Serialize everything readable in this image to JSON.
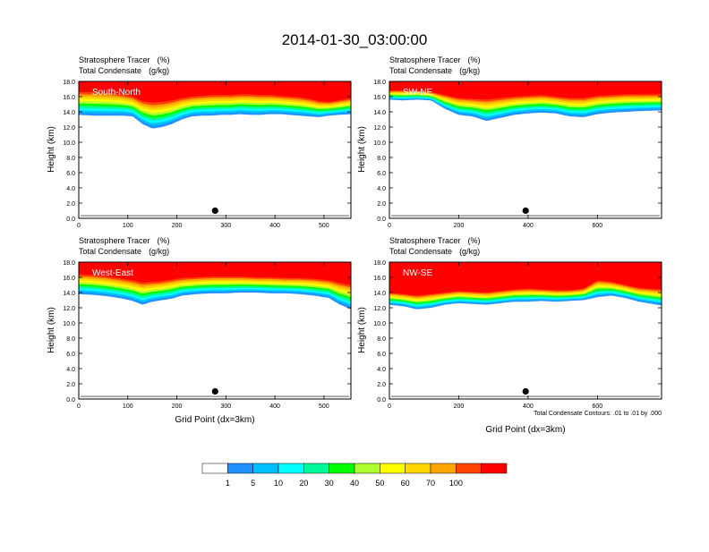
{
  "title": "2014-01-30_03:00:00",
  "panel_header": {
    "line1_name": "Stratosphere Tracer",
    "line1_unit": "(%)",
    "line2_name": "Total Condensate",
    "line2_unit": "(g/kg)"
  },
  "ylabel": "Height (km)",
  "xlabel": "Grid Point (dx=3km)",
  "contour_note": "Total Condensate Contours: .01 to .01 by .000",
  "colorbar": {
    "colors": [
      "#ffffff",
      "#1e90ff",
      "#00bfff",
      "#00ffff",
      "#00fa9a",
      "#00ff00",
      "#adff2f",
      "#ffff00",
      "#ffd700",
      "#ffa500",
      "#ff4500",
      "#ff0000"
    ],
    "labels": [
      "1",
      "5",
      "10",
      "20",
      "30",
      "40",
      "50",
      "60",
      "70",
      "100"
    ]
  },
  "chart_data": [
    {
      "type": "heatmap",
      "section": "South-North",
      "xlim": [
        0,
        555
      ],
      "ylim": [
        0,
        18
      ],
      "xticks": [
        "0",
        "100",
        "200",
        "300",
        "400",
        "500"
      ],
      "xtick_values": [
        0,
        100,
        200,
        300,
        400,
        500
      ],
      "yticks": [
        "0.0",
        "2.0",
        "4.0",
        "6.0",
        "8.0",
        "10.0",
        "12.0",
        "14.0",
        "16.0",
        "18.0"
      ],
      "marker": {
        "x": 278,
        "y": 1.0
      },
      "tracer_x": [
        0,
        30,
        60,
        90,
        110,
        130,
        150,
        170,
        190,
        210,
        230,
        250,
        270,
        290,
        310,
        330,
        350,
        370,
        390,
        410,
        430,
        450,
        470,
        490,
        510,
        530,
        555
      ],
      "tracer_base_km": [
        13.6,
        13.5,
        13.5,
        13.5,
        13.4,
        12.4,
        11.8,
        12.0,
        12.4,
        13.0,
        13.4,
        13.5,
        13.5,
        13.6,
        13.6,
        13.7,
        13.6,
        13.6,
        13.7,
        13.7,
        13.6,
        13.5,
        13.4,
        13.3,
        13.5,
        13.6,
        13.7
      ],
      "red_base_km": [
        16.6,
        16.6,
        16.5,
        16.3,
        16.0,
        15.4,
        15.2,
        15.3,
        15.5,
        15.8,
        16.0,
        16.1,
        16.2,
        16.2,
        16.2,
        16.3,
        16.3,
        16.2,
        16.2,
        16.1,
        16.0,
        15.9,
        15.7,
        15.4,
        15.3,
        15.5,
        15.8
      ]
    },
    {
      "type": "heatmap",
      "section": "SW-NE",
      "xlim": [
        0,
        785
      ],
      "ylim": [
        0,
        18
      ],
      "xticks": [
        "0",
        "200",
        "400",
        "600"
      ],
      "xtick_values": [
        0,
        200,
        400,
        600
      ],
      "yticks": [
        "0.0",
        "2.0",
        "4.0",
        "6.0",
        "8.0",
        "10.0",
        "12.0",
        "14.0",
        "16.0",
        "18.0"
      ],
      "marker": {
        "x": 393,
        "y": 1.0
      },
      "tracer_x": [
        0,
        40,
        80,
        120,
        160,
        200,
        240,
        280,
        320,
        360,
        400,
        440,
        480,
        520,
        560,
        600,
        640,
        680,
        720,
        785
      ],
      "tracer_base_km": [
        15.6,
        15.5,
        15.6,
        15.5,
        14.4,
        13.6,
        13.4,
        12.8,
        13.2,
        13.6,
        13.8,
        13.9,
        13.8,
        13.4,
        13.3,
        13.7,
        13.9,
        14.0,
        14.1,
        14.2
      ],
      "red_base_km": [
        16.8,
        16.8,
        16.8,
        16.6,
        16.2,
        15.8,
        15.7,
        15.6,
        15.8,
        16.0,
        16.1,
        16.2,
        16.0,
        15.8,
        15.8,
        16.1,
        16.2,
        16.3,
        16.3,
        16.3
      ]
    },
    {
      "type": "heatmap",
      "section": "West-East",
      "xlim": [
        0,
        555
      ],
      "ylim": [
        0,
        18
      ],
      "xticks": [
        "0",
        "100",
        "200",
        "300",
        "400",
        "500"
      ],
      "xtick_values": [
        0,
        100,
        200,
        300,
        400,
        500
      ],
      "yticks": [
        "0.0",
        "2.0",
        "4.0",
        "6.0",
        "8.0",
        "10.0",
        "12.0",
        "14.0",
        "16.0",
        "18.0"
      ],
      "marker": {
        "x": 278,
        "y": 1.0
      },
      "tracer_x": [
        0,
        30,
        60,
        90,
        110,
        130,
        150,
        170,
        190,
        210,
        240,
        270,
        300,
        330,
        360,
        390,
        420,
        450,
        480,
        510,
        530,
        555
      ],
      "tracer_base_km": [
        13.8,
        13.7,
        13.5,
        13.2,
        12.9,
        12.4,
        12.8,
        13.0,
        13.2,
        13.6,
        13.8,
        13.9,
        13.9,
        14.0,
        14.0,
        13.9,
        13.9,
        13.8,
        13.6,
        13.3,
        12.5,
        11.8
      ],
      "red_base_km": [
        16.4,
        16.3,
        16.1,
        15.8,
        15.6,
        15.3,
        15.4,
        15.5,
        15.7,
        15.9,
        16.0,
        16.1,
        16.1,
        16.1,
        16.0,
        16.0,
        15.9,
        15.9,
        15.8,
        15.6,
        15.3,
        15.0
      ]
    },
    {
      "type": "heatmap",
      "section": "NW-SE",
      "xlim": [
        0,
        785
      ],
      "ylim": [
        0,
        18
      ],
      "xticks": [
        "0",
        "200",
        "400",
        "600"
      ],
      "xtick_values": [
        0,
        200,
        400,
        600
      ],
      "yticks": [
        "0.0",
        "2.0",
        "4.0",
        "6.0",
        "8.0",
        "10.0",
        "12.0",
        "14.0",
        "16.0",
        "18.0"
      ],
      "marker": {
        "x": 393,
        "y": 1.0
      },
      "tracer_x": [
        0,
        40,
        80,
        120,
        160,
        200,
        240,
        280,
        320,
        360,
        400,
        440,
        480,
        520,
        560,
        600,
        640,
        680,
        720,
        785
      ],
      "tracer_base_km": [
        12.4,
        12.2,
        11.8,
        12.0,
        12.4,
        12.6,
        12.5,
        12.4,
        12.6,
        12.8,
        12.8,
        12.9,
        12.8,
        12.9,
        13.0,
        13.4,
        13.6,
        13.3,
        12.8,
        12.3
      ],
      "red_base_km": [
        14.0,
        13.8,
        13.6,
        13.8,
        14.0,
        14.2,
        14.1,
        14.0,
        14.2,
        14.4,
        14.5,
        14.4,
        14.3,
        14.3,
        14.5,
        15.6,
        15.4,
        15.0,
        14.6,
        14.4
      ]
    }
  ]
}
